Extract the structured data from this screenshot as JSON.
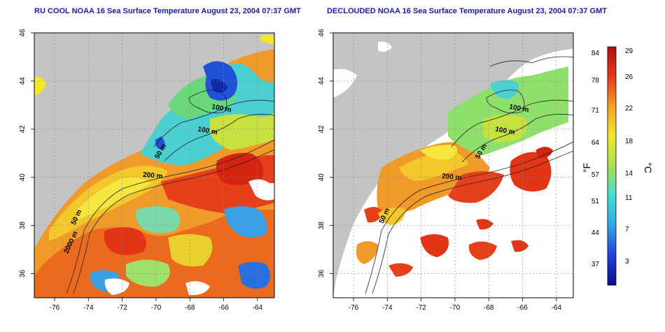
{
  "panels": [
    {
      "title": "RU COOL NOAA 16 Sea Surface Temperature August 23, 2004 07:37 GMT",
      "mode": "raw"
    },
    {
      "title": "DECLOUDED NOAA 16 Sea Surface Temperature August 23, 2004 07:37 GMT",
      "mode": "declouded"
    }
  ],
  "axes": {
    "lon_ticks": [
      "-76",
      "-74",
      "-72",
      "-70",
      "-68",
      "-66",
      "-64"
    ],
    "lat_ticks": [
      "36",
      "38",
      "40",
      "42",
      "44",
      "46"
    ],
    "xlim": [
      -77.2,
      -63
    ],
    "ylim": [
      35,
      46
    ]
  },
  "contours": {
    "labels": [
      "100 m",
      "100 m",
      "50 m",
      "200 m",
      "50 m",
      "2000 m"
    ]
  },
  "colorbar": {
    "unit_f": "°F",
    "unit_c": "°C",
    "f_ticks": [
      "84",
      "78",
      "71",
      "64",
      "57",
      "51",
      "44",
      "37"
    ],
    "c_ticks": [
      "29",
      "26",
      "22",
      "18",
      "14",
      "11",
      "7",
      "3"
    ],
    "colors": [
      "#0a0f8c",
      "#1f3fe0",
      "#2fa8e8",
      "#3ee0d2",
      "#a8e050",
      "#f2e828",
      "#f8a020",
      "#e83818",
      "#b01010"
    ]
  },
  "colors": {
    "land": "#c4c4c4",
    "cloud": "#ffffff",
    "title": "#1a1aa6"
  }
}
